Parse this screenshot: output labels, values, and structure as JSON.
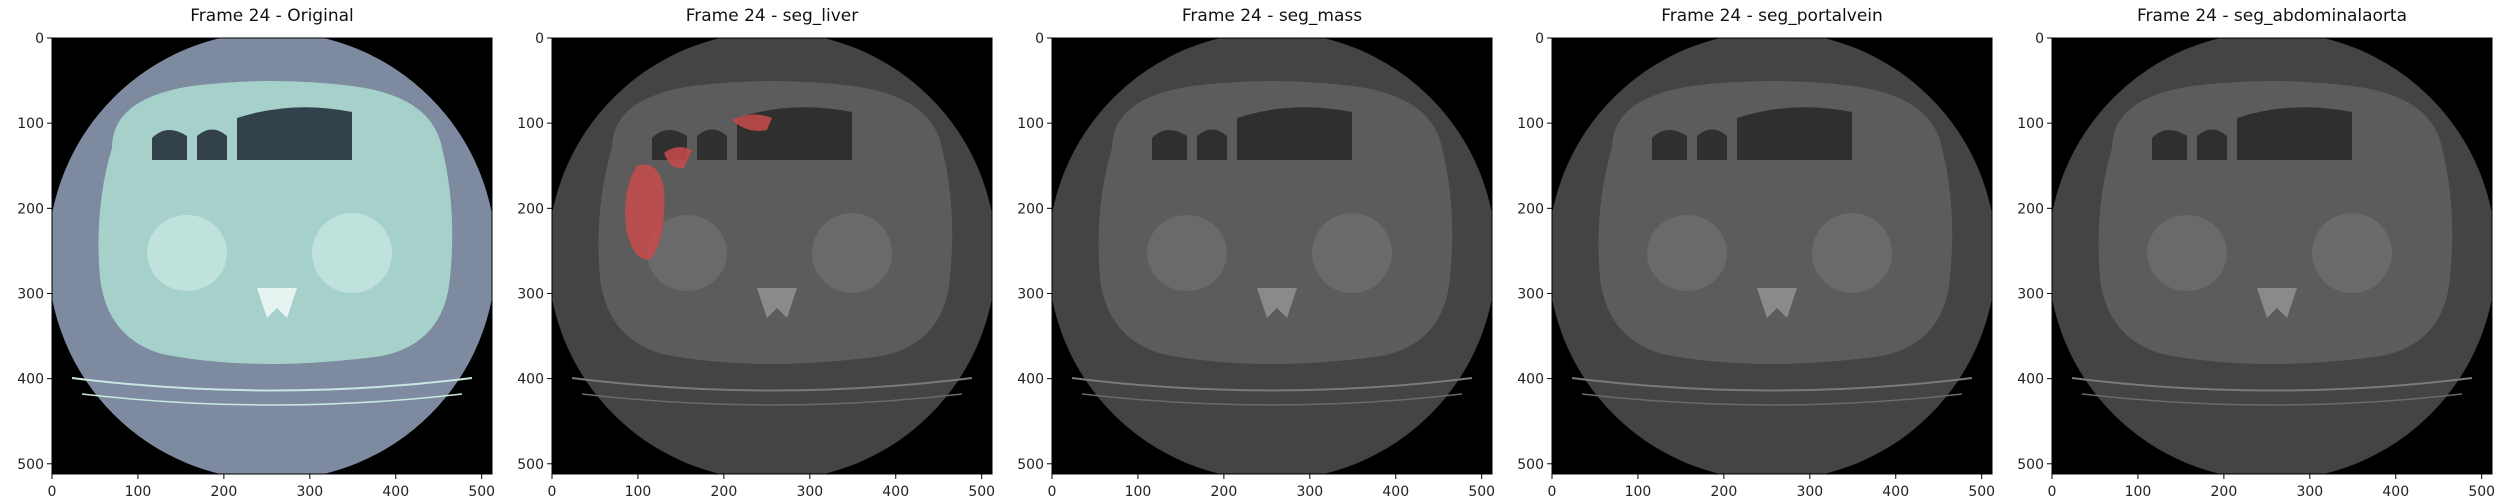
{
  "panels": [
    {
      "title": "Frame 24 - Original",
      "mode": "original",
      "overlay": null
    },
    {
      "title": "Frame 24 - seg_liver",
      "mode": "gray",
      "overlay": "liver"
    },
    {
      "title": "Frame 24 - seg_mass",
      "mode": "gray",
      "overlay": null
    },
    {
      "title": "Frame 24 - seg_portalvein",
      "mode": "gray",
      "overlay": null
    },
    {
      "title": "Frame 24 - seg_abdominalaorta",
      "mode": "gray",
      "overlay": null
    }
  ],
  "axes": {
    "xticks": [
      "0",
      "100",
      "200",
      "300",
      "400",
      "500"
    ],
    "yticks": [
      "0",
      "100",
      "200",
      "300",
      "400",
      "500"
    ],
    "range": [
      0,
      512
    ]
  },
  "colors": {
    "original_fov": "#7d8aa0",
    "original_body": "#a6d1cb",
    "original_organs": "#bfe2dc",
    "original_gas": "#33424a",
    "gray_fov": "#444444",
    "gray_body": "#5c5c5c",
    "gray_organs": "#6a6a6a",
    "gray_gas": "#2f2f2f",
    "overlay_red": "#c84a4a"
  }
}
